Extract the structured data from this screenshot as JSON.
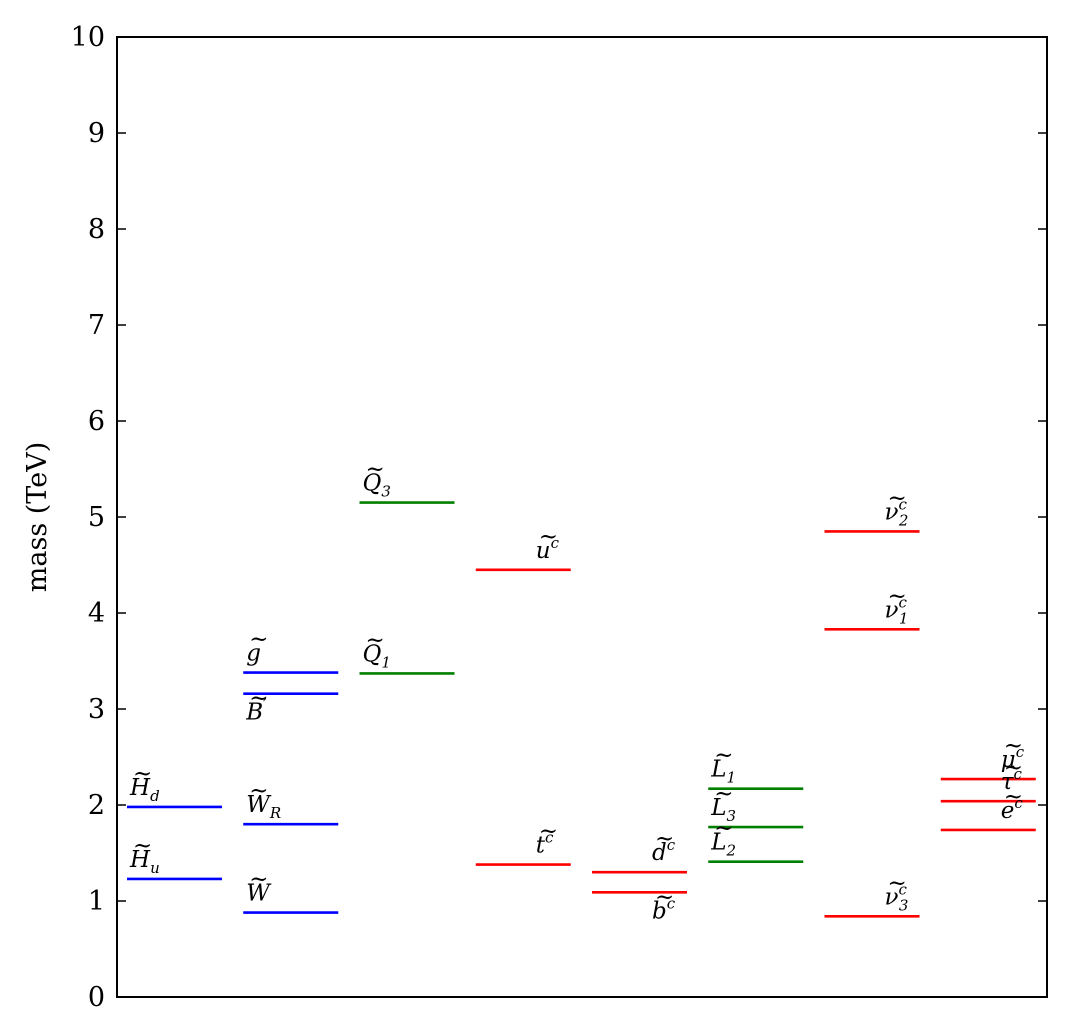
{
  "chart_data": {
    "type": "level-spectrum",
    "ylabel": "mass (TeV)",
    "ylim": [
      0,
      10
    ],
    "yticks": [
      "0",
      "1",
      "2",
      "3",
      "4",
      "5",
      "6",
      "7",
      "8",
      "9",
      "10"
    ],
    "grid": false,
    "colors": {
      "higgs_gauge": "#0000ff",
      "left_sfermion": "#008000",
      "right_sfermion": "#ff0000"
    },
    "columns": 8,
    "levels": [
      {
        "col": 0,
        "value": 1.98,
        "color": "#0000ff",
        "base": "H",
        "sub": "d",
        "sup": "",
        "label_pos": "above-left"
      },
      {
        "col": 0,
        "value": 1.23,
        "color": "#0000ff",
        "base": "H",
        "sub": "u",
        "sup": "",
        "label_pos": "above-left"
      },
      {
        "col": 1,
        "value": 3.38,
        "color": "#0000ff",
        "base": "g",
        "sub": "",
        "sup": "",
        "label_pos": "above-left"
      },
      {
        "col": 1,
        "value": 3.16,
        "color": "#0000ff",
        "base": "B",
        "sub": "",
        "sup": "′",
        "label_pos": "below-left"
      },
      {
        "col": 1,
        "value": 1.8,
        "color": "#0000ff",
        "base": "W",
        "sub": "R",
        "sup": "",
        "label_pos": "above-left"
      },
      {
        "col": 1,
        "value": 0.88,
        "color": "#0000ff",
        "base": "W",
        "sub": "",
        "sup": "",
        "label_pos": "above-left"
      },
      {
        "col": 2,
        "value": 5.15,
        "color": "#008000",
        "base": "Q",
        "sub": "3",
        "sup": "",
        "label_pos": "above-left"
      },
      {
        "col": 2,
        "value": 3.37,
        "color": "#008000",
        "base": "Q",
        "sub": "1",
        "sup": "",
        "label_pos": "above-left"
      },
      {
        "col": 3,
        "value": 4.45,
        "color": "#ff0000",
        "base": "u",
        "sub": "",
        "sup": "c",
        "label_pos": "above-right"
      },
      {
        "col": 3,
        "value": 1.38,
        "color": "#ff0000",
        "base": "t",
        "sub": "",
        "sup": "c",
        "label_pos": "above-right"
      },
      {
        "col": 4,
        "value": 1.3,
        "color": "#ff0000",
        "base": "d",
        "sub": "",
        "sup": "c",
        "label_pos": "above-right"
      },
      {
        "col": 4,
        "value": 1.09,
        "color": "#ff0000",
        "base": "b",
        "sub": "",
        "sup": "c",
        "label_pos": "below-right"
      },
      {
        "col": 5,
        "value": 2.17,
        "color": "#008000",
        "base": "L",
        "sub": "1",
        "sup": "",
        "label_pos": "above-left"
      },
      {
        "col": 5,
        "value": 1.77,
        "color": "#008000",
        "base": "L",
        "sub": "3",
        "sup": "",
        "label_pos": "above-left"
      },
      {
        "col": 5,
        "value": 1.41,
        "color": "#008000",
        "base": "L",
        "sub": "2",
        "sup": "",
        "label_pos": "above-left"
      },
      {
        "col": 6,
        "value": 4.85,
        "color": "#ff0000",
        "base": "ν",
        "sub": "2",
        "sup": "c",
        "label_pos": "above-right"
      },
      {
        "col": 6,
        "value": 3.83,
        "color": "#ff0000",
        "base": "ν",
        "sub": "1",
        "sup": "c",
        "label_pos": "above-right"
      },
      {
        "col": 6,
        "value": 0.84,
        "color": "#ff0000",
        "base": "ν",
        "sub": "3",
        "sup": "c",
        "label_pos": "above-right"
      },
      {
        "col": 7,
        "value": 2.27,
        "color": "#ff0000",
        "base": "μ",
        "sub": "",
        "sup": "c",
        "label_pos": "above-right"
      },
      {
        "col": 7,
        "value": 2.04,
        "color": "#ff0000",
        "base": "τ",
        "sub": "",
        "sup": "c",
        "label_pos": "above-right"
      },
      {
        "col": 7,
        "value": 1.74,
        "color": "#ff0000",
        "base": "e",
        "sub": "",
        "sup": "c",
        "label_pos": "above-right"
      }
    ]
  }
}
